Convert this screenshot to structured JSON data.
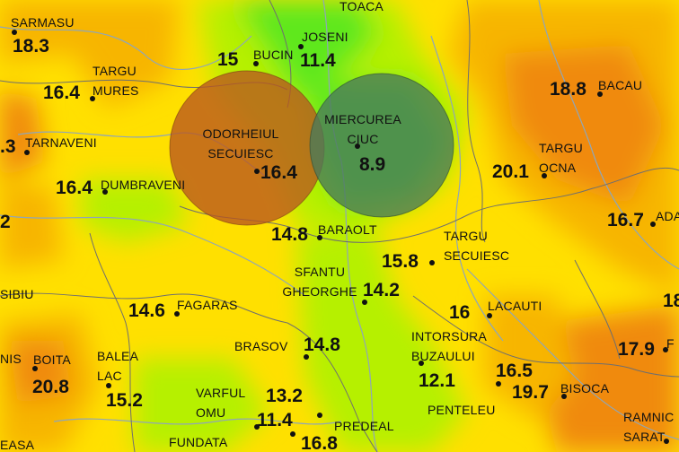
{
  "map": {
    "palette": {
      "hot": "#f08a10",
      "warm": "#f7b500",
      "mild": "#ffe000",
      "cool": "#e8f200",
      "cooler": "#b6f000",
      "cold": "#5fe81a",
      "river": "#8fa6b8",
      "border": "#6f6f6f",
      "circle_warm": "#b8561f",
      "circle_cool": "#4a7a5a"
    },
    "stations": [
      {
        "id": "sarmasu",
        "name": "SARMASU",
        "value": "18.3"
      },
      {
        "id": "targu-mures",
        "name": "TARGU\nMURES",
        "value": "16.4"
      },
      {
        "id": "tarnaveni",
        "name": "TARNAVENI",
        "value": ".3"
      },
      {
        "id": "dumbraveni",
        "name": "DUMBRAVENI",
        "value": "16.4"
      },
      {
        "id": "edge-left",
        "name": "",
        "value": "2"
      },
      {
        "id": "bucin",
        "name": "BUCIN",
        "value": "15"
      },
      {
        "id": "joseni",
        "name": "JOSENI",
        "value": "11.4"
      },
      {
        "id": "toaca",
        "name": "TOACA",
        "value": ""
      },
      {
        "id": "odorheiul",
        "name": "ODORHEIUL\nSECUIESC",
        "value": "16.4"
      },
      {
        "id": "miercurea",
        "name": "MIERCUREA\nCIUC",
        "value": "8.9"
      },
      {
        "id": "bacau",
        "name": "BACAU",
        "value": "18.8"
      },
      {
        "id": "targu-ocna",
        "name": "TARGU\nOCNA",
        "value": "20.1"
      },
      {
        "id": "ada",
        "name": "ADA",
        "value": "16.7"
      },
      {
        "id": "baraolt",
        "name": "BARAOLT",
        "value": "14.8"
      },
      {
        "id": "targu-secuiesc",
        "name": "TARGU\nSECUIESC",
        "value": "15.8"
      },
      {
        "id": "sfantu",
        "name": "SFANTU\nGHEORGHE",
        "value": "14.2"
      },
      {
        "id": "fagaras",
        "name": "FAGARAS",
        "value": "14.6"
      },
      {
        "id": "lacauti",
        "name": "LACAUTI",
        "value": "16"
      },
      {
        "id": "edge-right",
        "name": "",
        "value": "18"
      },
      {
        "id": "sibiu",
        "name": "SIBIU",
        "value": ""
      },
      {
        "id": "intorsura",
        "name": "INTORSURA\nBUZAULUI",
        "value": "12.1"
      },
      {
        "id": "brasov",
        "name": "BRASOV",
        "value": "14.8"
      },
      {
        "id": "nis",
        "name": "NIS",
        "value": ""
      },
      {
        "id": "boita",
        "name": "BOITA",
        "value": "20.8"
      },
      {
        "id": "balea-lac",
        "name": "BALEA\nLAC",
        "value": "15.2"
      },
      {
        "id": "f-edge",
        "name": "F",
        "value": "17.9"
      },
      {
        "id": "penteleu",
        "name": "PENTELEU",
        "value": "16.5"
      },
      {
        "id": "bisoca",
        "name": "BISOCA",
        "value": "19.7"
      },
      {
        "id": "varful-omu",
        "name": "VARFUL\nOMU",
        "value": "13.2"
      },
      {
        "id": "predeal",
        "name": "PREDEAL",
        "value": "11.4"
      },
      {
        "id": "fundata",
        "name": "FUNDATA",
        "value": "16.8"
      },
      {
        "id": "ramnic-sarat",
        "name": "RAMNIC\nSARAT",
        "value": ""
      },
      {
        "id": "easa",
        "name": "EASA",
        "value": ""
      }
    ]
  }
}
